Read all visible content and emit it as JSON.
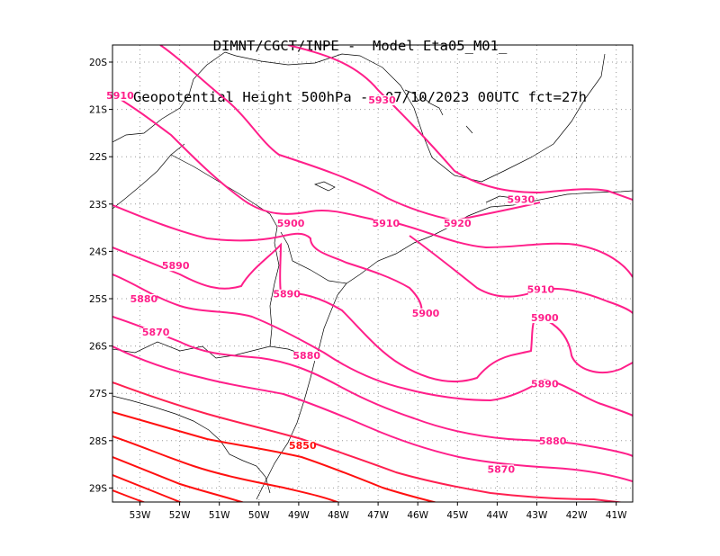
{
  "header": {
    "line1": "DIMNT/CGCT/INPE -  Model Eta05_M01_",
    "line2": "Geopotential Height 500hPa -  07/10/2023 00UTC fct=27h"
  },
  "axes": {
    "lat_ticks": [
      "20S",
      "21S",
      "22S",
      "23S",
      "24S",
      "25S",
      "26S",
      "27S",
      "28S",
      "29S"
    ],
    "lon_ticks": [
      "53W",
      "52W",
      "51W",
      "50W",
      "49W",
      "48W",
      "47W",
      "46W",
      "45W",
      "44W",
      "43W",
      "42W",
      "41W"
    ]
  },
  "colors": {
    "pink": "#ff1f8a",
    "red": "#ff1010",
    "border": "#000000"
  },
  "contour_labels": [
    {
      "text": "5910",
      "lon": -53.5,
      "lat": -20.7
    },
    {
      "text": "5930",
      "lon": -46.9,
      "lat": -20.8
    },
    {
      "text": "5930",
      "lon": -43.4,
      "lat": -22.9
    },
    {
      "text": "5920",
      "lon": -45.0,
      "lat": -23.4
    },
    {
      "text": "5910",
      "lon": -46.8,
      "lat": -23.4
    },
    {
      "text": "5900",
      "lon": -49.2,
      "lat": -23.4
    },
    {
      "text": "5890",
      "lon": -52.1,
      "lat": -24.3
    },
    {
      "text": "5880",
      "lon": -52.9,
      "lat": -25.0
    },
    {
      "text": "5890",
      "lon": -49.3,
      "lat": -24.9
    },
    {
      "text": "5910",
      "lon": -42.9,
      "lat": -24.8
    },
    {
      "text": "5900",
      "lon": -45.8,
      "lat": -25.3
    },
    {
      "text": "5900",
      "lon": -42.8,
      "lat": -25.4
    },
    {
      "text": "5870",
      "lon": -52.6,
      "lat": -25.7
    },
    {
      "text": "5880",
      "lon": -48.8,
      "lat": -26.2
    },
    {
      "text": "5890",
      "lon": -42.8,
      "lat": -26.8
    },
    {
      "text": "5880",
      "lon": -42.6,
      "lat": -28.0
    },
    {
      "text": "5850",
      "lon": -48.9,
      "lat": -28.1
    },
    {
      "text": "5870",
      "lon": -43.9,
      "lat": -28.6
    }
  ]
}
